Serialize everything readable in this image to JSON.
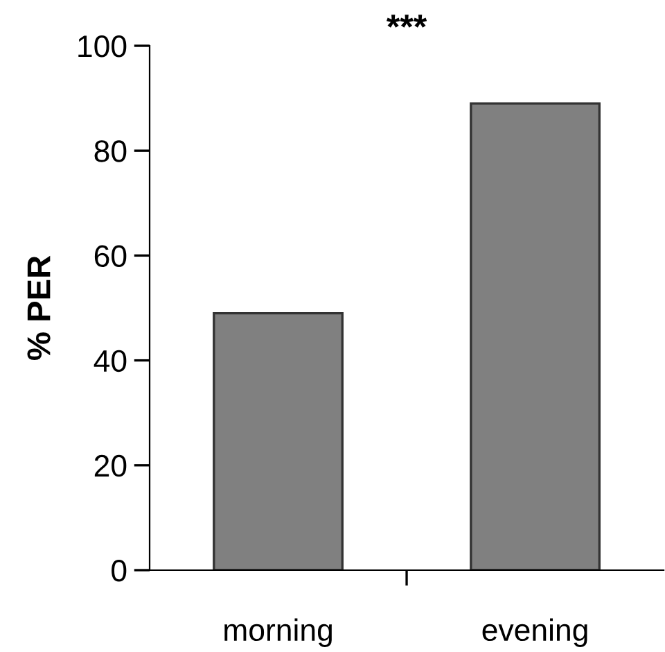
{
  "chart_data": {
    "type": "bar",
    "categories": [
      "morning",
      "evening"
    ],
    "values": [
      49,
      89
    ],
    "color": "#808080",
    "ylabel": "% PER",
    "ylim": [
      0,
      100
    ],
    "yticks": [
      0,
      20,
      40,
      60,
      80,
      100
    ],
    "annotations": [
      "***"
    ],
    "grid": false,
    "legend": false
  }
}
